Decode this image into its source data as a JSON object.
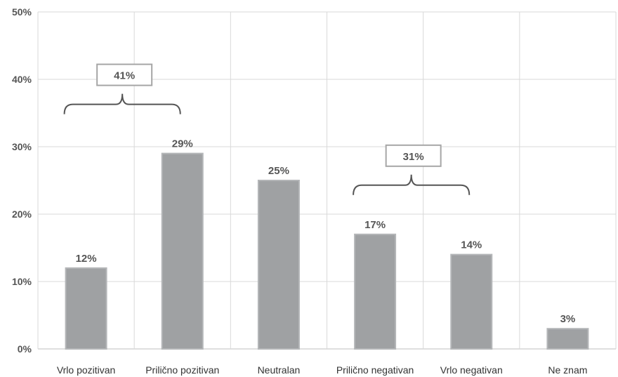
{
  "chart_data": {
    "type": "bar",
    "categories": [
      "Vrlo pozitivan",
      "Prilično pozitivan",
      "Neutralan",
      "Prilično negativan",
      "Vrlo negativan",
      "Ne znam"
    ],
    "values": [
      12,
      29,
      25,
      17,
      14,
      3
    ],
    "value_labels": [
      "12%",
      "29%",
      "25%",
      "17%",
      "14%",
      "3%"
    ],
    "ylim": [
      0,
      50
    ],
    "yticks": [
      0,
      10,
      20,
      30,
      40,
      50
    ],
    "ytick_labels": [
      "0%",
      "10%",
      "20%",
      "30%",
      "40%",
      "50%"
    ],
    "grid": true,
    "title": "",
    "xlabel": "",
    "ylabel": "",
    "group_annotations": [
      {
        "label": "41%",
        "categories": [
          "Vrlo pozitivan",
          "Prilično pozitivan"
        ]
      },
      {
        "label": "31%",
        "categories": [
          "Prilično negativan",
          "Vrlo negativan"
        ]
      }
    ],
    "colors": {
      "bar_fill": "#9fa1a3",
      "bar_edge": "#b4b6b8",
      "grid": "#d9d9d9",
      "axis": "#bfbfbf",
      "brace": "#555555",
      "box": "#a6a6a6"
    }
  }
}
